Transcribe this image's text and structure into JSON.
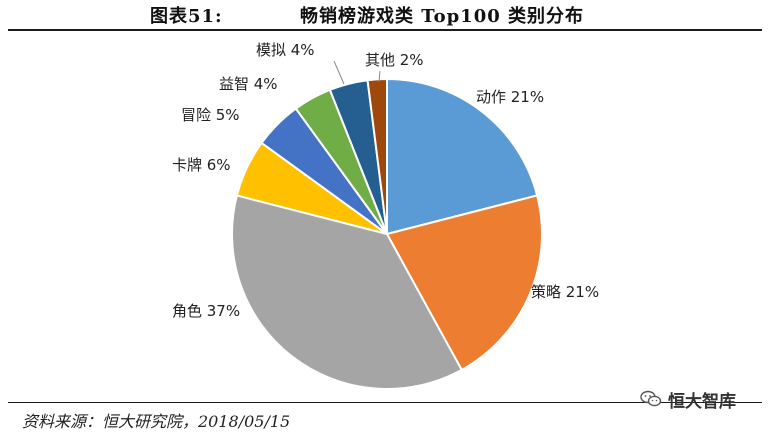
{
  "figure": {
    "label": "图表51:",
    "title": "畅销榜游戏类 Top100 类别分布"
  },
  "source": "资料来源：恒大研究院，2018/05/15",
  "watermark": {
    "text": "恒大智库",
    "icon": "wechat-icon"
  },
  "chart_data": {
    "type": "pie",
    "start_angle_deg": 0,
    "direction": "clockwise",
    "slices": [
      {
        "label": "动作 21%",
        "category": "动作",
        "value": 21,
        "color": "#5B9BD5"
      },
      {
        "label": "策略 21%",
        "category": "策略",
        "value": 21,
        "color": "#ED7D31"
      },
      {
        "label": "角色 37%",
        "category": "角色",
        "value": 37,
        "color": "#A5A5A5"
      },
      {
        "label": "卡牌 6%",
        "category": "卡牌",
        "value": 6,
        "color": "#FFC000"
      },
      {
        "label": "冒险 5%",
        "category": "冒险",
        "value": 5,
        "color": "#4472C4"
      },
      {
        "label": "益智 4%",
        "category": "益智",
        "value": 4,
        "color": "#70AD47"
      },
      {
        "label": "模拟 4%",
        "category": "模拟",
        "value": 4,
        "color": "#255E91"
      },
      {
        "label": "其他 2%",
        "category": "其他",
        "value": 2,
        "color": "#9E480E"
      }
    ]
  }
}
